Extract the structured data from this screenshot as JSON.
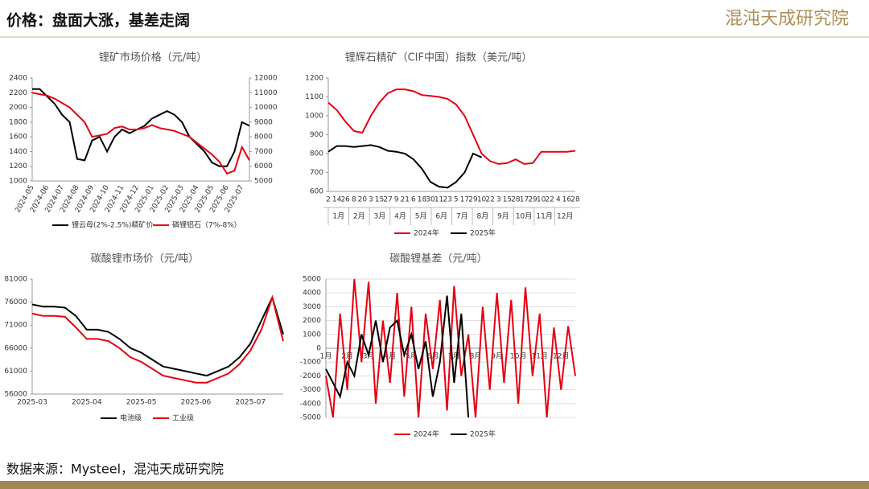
{
  "header": {
    "title": "价格：盘面大涨，基差走阔",
    "logo": "混沌天成研究院"
  },
  "footer": {
    "source": "数据来源：Mysteel，混沌天成研究院"
  },
  "chart_data": [
    {
      "type": "line",
      "title": "锂矿市场价格（元/吨）",
      "categories": [
        "2024-05",
        null,
        "2024-06",
        null,
        "2024-07",
        null,
        "2024-08",
        null,
        "2024-09",
        null,
        "2024-10",
        null,
        "2024-11",
        null,
        "2024-12",
        null,
        "2025-01",
        null,
        "2025-02",
        null,
        "2025-03",
        null,
        "2025-04",
        null,
        "2025-05",
        null,
        "2025-06",
        null,
        "2025-07",
        null
      ],
      "series": [
        {
          "name": "锂云母(2%-2.5%)精矿价",
          "color": "#000000",
          "values": [
            2250,
            2250,
            2150,
            2050,
            1900,
            1800,
            1300,
            1280,
            1550,
            1600,
            1400,
            1600,
            1700,
            1650,
            1700,
            1750,
            1850,
            1900,
            1950,
            1900,
            1800,
            1600,
            1500,
            1400,
            1250,
            1200,
            1200,
            1400,
            1800,
            1750
          ]
        },
        {
          "name": "磷锂铝石（7%-8%）",
          "color": "#e60012",
          "axis": "y2",
          "values": [
            11000,
            10900,
            10800,
            10600,
            10300,
            10000,
            9500,
            9000,
            8000,
            8100,
            8200,
            8600,
            8700,
            8500,
            8500,
            8600,
            8800,
            8600,
            8500,
            8400,
            8200,
            8000,
            7600,
            7200,
            6800,
            6300,
            5500,
            5700,
            7300,
            6400
          ]
        }
      ],
      "ylim": [
        1000,
        2400
      ],
      "yticks": [
        1000,
        1200,
        1400,
        1600,
        1800,
        2000,
        2200,
        2400
      ],
      "y2lim": [
        5000,
        12000
      ],
      "y2ticks": [
        5000,
        6000,
        7000,
        8000,
        9000,
        10000,
        11000,
        12000
      ],
      "grid": false
    },
    {
      "type": "line",
      "title": "锂辉石精矿（CIF中国）指数（美元/吨）",
      "categories": [
        "2",
        "14",
        "26",
        "8",
        "20",
        "3",
        "15",
        "27",
        "9",
        "21",
        "6",
        "18",
        "30",
        "11",
        "23",
        "5",
        "17",
        "29",
        "10",
        "22",
        "3",
        "15",
        "28",
        "17",
        "29",
        "10",
        "22",
        "4",
        "16",
        "28"
      ],
      "months": [
        "1月",
        "2月",
        "3月",
        "4月",
        "5月",
        "6月",
        "7月",
        "8月",
        "9月",
        "10月",
        "11月",
        "12月"
      ],
      "series": [
        {
          "name": "2024年",
          "color": "#e60012",
          "values": [
            1070,
            1030,
            970,
            920,
            910,
            1000,
            1070,
            1120,
            1140,
            1140,
            1130,
            1110,
            1105,
            1100,
            1090,
            1060,
            1000,
            900,
            800,
            760,
            745,
            750,
            770,
            745,
            750,
            810,
            810,
            810,
            810,
            815
          ]
        },
        {
          "name": "2025年",
          "color": "#000000",
          "values": [
            810,
            840,
            840,
            835,
            840,
            845,
            835,
            815,
            810,
            800,
            770,
            720,
            650,
            625,
            620,
            650,
            700,
            800,
            780,
            null,
            null,
            null,
            null,
            null,
            null,
            null,
            null,
            null,
            null,
            null
          ]
        }
      ],
      "ylim": [
        600,
        1200
      ],
      "yticks": [
        600,
        700,
        800,
        900,
        1000,
        1100,
        1200
      ],
      "grid": false
    },
    {
      "type": "line",
      "title": "碳酸锂市场价（元/吨）",
      "categories": [
        "2025-03",
        null,
        null,
        null,
        null,
        "2025-04",
        null,
        null,
        null,
        null,
        "2025-05",
        null,
        null,
        null,
        null,
        "2025-06",
        null,
        null,
        null,
        null,
        "2025-07",
        null,
        null,
        null
      ],
      "series": [
        {
          "name": "电池级",
          "color": "#000000",
          "values": [
            75500,
            75000,
            75000,
            74800,
            73000,
            70000,
            70000,
            69500,
            68000,
            66000,
            65000,
            63500,
            62000,
            61500,
            61000,
            60500,
            60000,
            61000,
            62000,
            64000,
            67000,
            72000,
            77000,
            69000
          ]
        },
        {
          "name": "工业级",
          "color": "#e60012",
          "values": [
            73500,
            73000,
            73000,
            72800,
            70500,
            68000,
            68000,
            67500,
            66000,
            64000,
            63000,
            61500,
            60000,
            59500,
            59000,
            58500,
            58500,
            59500,
            60500,
            62500,
            65500,
            70000,
            77000,
            67500
          ]
        }
      ],
      "ylim": [
        56000,
        81000
      ],
      "yticks": [
        56000,
        61000,
        66000,
        71000,
        76000,
        81000
      ],
      "grid": false
    },
    {
      "type": "line",
      "title": "碳酸锂基差（元/吨）",
      "categories": [
        "1月",
        null,
        null,
        "2月",
        null,
        null,
        "3月",
        null,
        null,
        "4月",
        null,
        null,
        "5月",
        null,
        null,
        "6月",
        null,
        null,
        "7月",
        null,
        null,
        "8月",
        null,
        null,
        "9月",
        null,
        null,
        "10月",
        null,
        null,
        "11月",
        null,
        null,
        "12月",
        null,
        null
      ],
      "series": [
        {
          "name": "2024年",
          "color": "#e60012",
          "values": [
            -2000,
            -5000,
            2500,
            -3000,
            5000,
            -1000,
            4800,
            -4000,
            2000,
            -2500,
            4000,
            -3500,
            3000,
            -5000,
            2500,
            -1500,
            3500,
            -4500,
            4500,
            -2000,
            1000,
            -5000,
            3000,
            -3000,
            4000,
            -2500,
            3500,
            -4000,
            4400,
            -2000,
            2500,
            -5000,
            1500,
            -3000,
            1600,
            -2000
          ]
        },
        {
          "name": "2025年",
          "color": "#000000",
          "values": [
            -1500,
            -2500,
            -3500,
            -1000,
            -2000,
            1000,
            -500,
            2000,
            -1000,
            1500,
            2000,
            -500,
            1000,
            -1500,
            500,
            -3500,
            -1000,
            3800,
            -2500,
            2500,
            -5000,
            null,
            null,
            null,
            null,
            null,
            null,
            null,
            null,
            null,
            null,
            null,
            null,
            null,
            null,
            null
          ]
        }
      ],
      "ylim": [
        -5000,
        5000
      ],
      "yticks": [
        -5000,
        -4000,
        -3000,
        -2000,
        -1000,
        0,
        1000,
        2000,
        3000,
        4000,
        5000
      ],
      "grid": true
    }
  ]
}
